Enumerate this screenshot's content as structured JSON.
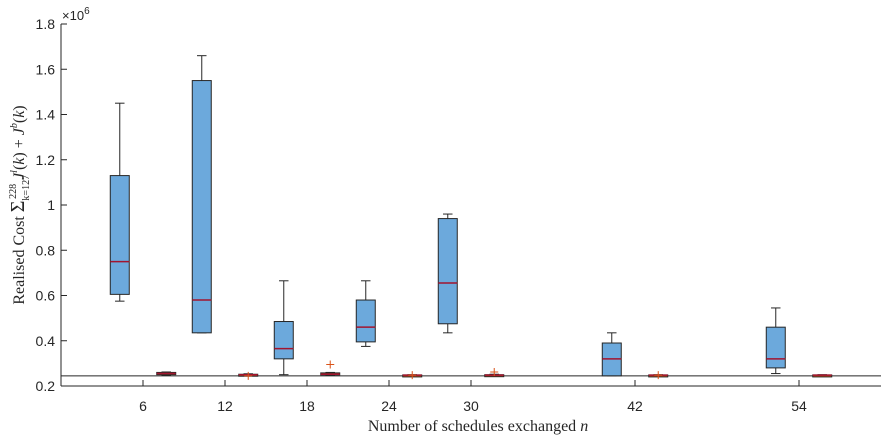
{
  "chart_data": {
    "type": "boxplot",
    "xlabel": "Number of schedules exchanged n",
    "ylabel": "Realised Cost Σ_{k=127}^{228} J^l(k) + J^b(k)",
    "y_exponent_label": "×10^6",
    "ylim": [
      0.2,
      1.8
    ],
    "yticks": [
      "0.2",
      "0.4",
      "0.6",
      "0.8",
      "1",
      "1.2",
      "1.4",
      "1.6",
      "1.8"
    ],
    "ytick_values": [
      0.2,
      0.4,
      0.6,
      0.8,
      1.0,
      1.2,
      1.4,
      1.6,
      1.8
    ],
    "xlim": [
      0,
      60
    ],
    "xticks": [
      "6",
      "12",
      "18",
      "24",
      "30",
      "42",
      "54"
    ],
    "xtick_values": [
      6,
      12,
      18,
      24,
      30,
      42,
      54
    ],
    "reference_line": 0.245,
    "grid": false,
    "series": [
      {
        "color": "#6ca9dc",
        "median_color": "#a2142f",
        "boxes": [
          {
            "x": 6,
            "whisker_low": 0.575,
            "q1": 0.605,
            "median": 0.75,
            "q3": 1.13,
            "whisker_high": 1.45,
            "outliers": []
          },
          {
            "x": 12,
            "whisker_low": 0.435,
            "q1": 0.435,
            "median": 0.58,
            "q3": 1.55,
            "whisker_high": 1.66,
            "outliers": []
          },
          {
            "x": 18,
            "whisker_low": 0.25,
            "q1": 0.32,
            "median": 0.365,
            "q3": 0.485,
            "whisker_high": 0.665,
            "outliers": []
          },
          {
            "x": 24,
            "whisker_low": 0.375,
            "q1": 0.395,
            "median": 0.46,
            "q3": 0.58,
            "whisker_high": 0.665,
            "outliers": []
          },
          {
            "x": 30,
            "whisker_low": 0.435,
            "q1": 0.475,
            "median": 0.655,
            "q3": 0.94,
            "whisker_high": 0.96,
            "outliers": []
          },
          {
            "x": 42,
            "whisker_low": 0.245,
            "q1": 0.245,
            "median": 0.32,
            "q3": 0.39,
            "whisker_high": 0.435,
            "outliers": []
          },
          {
            "x": 54,
            "whisker_low": 0.255,
            "q1": 0.28,
            "median": 0.32,
            "q3": 0.46,
            "whisker_high": 0.545,
            "outliers": []
          }
        ]
      },
      {
        "color": "#d95319",
        "median_color": "#a2142f",
        "boxes": [
          {
            "x": 6,
            "whisker_low": 0.248,
            "q1": 0.25,
            "median": 0.255,
            "q3": 0.26,
            "whisker_high": 0.262,
            "outliers": []
          },
          {
            "x": 12,
            "whisker_low": 0.247,
            "q1": 0.249,
            "median": 0.25,
            "q3": 0.252,
            "whisker_high": 0.254,
            "outliers": [
              0.245
            ]
          },
          {
            "x": 18,
            "whisker_low": 0.247,
            "q1": 0.25,
            "median": 0.252,
            "q3": 0.258,
            "whisker_high": 0.26,
            "outliers": [
              0.295
            ]
          },
          {
            "x": 24,
            "whisker_low": 0.246,
            "q1": 0.247,
            "median": 0.248,
            "q3": 0.249,
            "whisker_high": 0.25,
            "outliers": [
              0.248
            ]
          },
          {
            "x": 30,
            "whisker_low": 0.246,
            "q1": 0.247,
            "median": 0.248,
            "q3": 0.25,
            "whisker_high": 0.252,
            "outliers": [
              0.262
            ]
          },
          {
            "x": 42,
            "whisker_low": 0.246,
            "q1": 0.247,
            "median": 0.248,
            "q3": 0.249,
            "whisker_high": 0.25,
            "outliers": [
              0.248
            ]
          },
          {
            "x": 54,
            "whisker_low": 0.246,
            "q1": 0.247,
            "median": 0.248,
            "q3": 0.249,
            "whisker_high": 0.25,
            "outliers": []
          }
        ]
      }
    ]
  }
}
